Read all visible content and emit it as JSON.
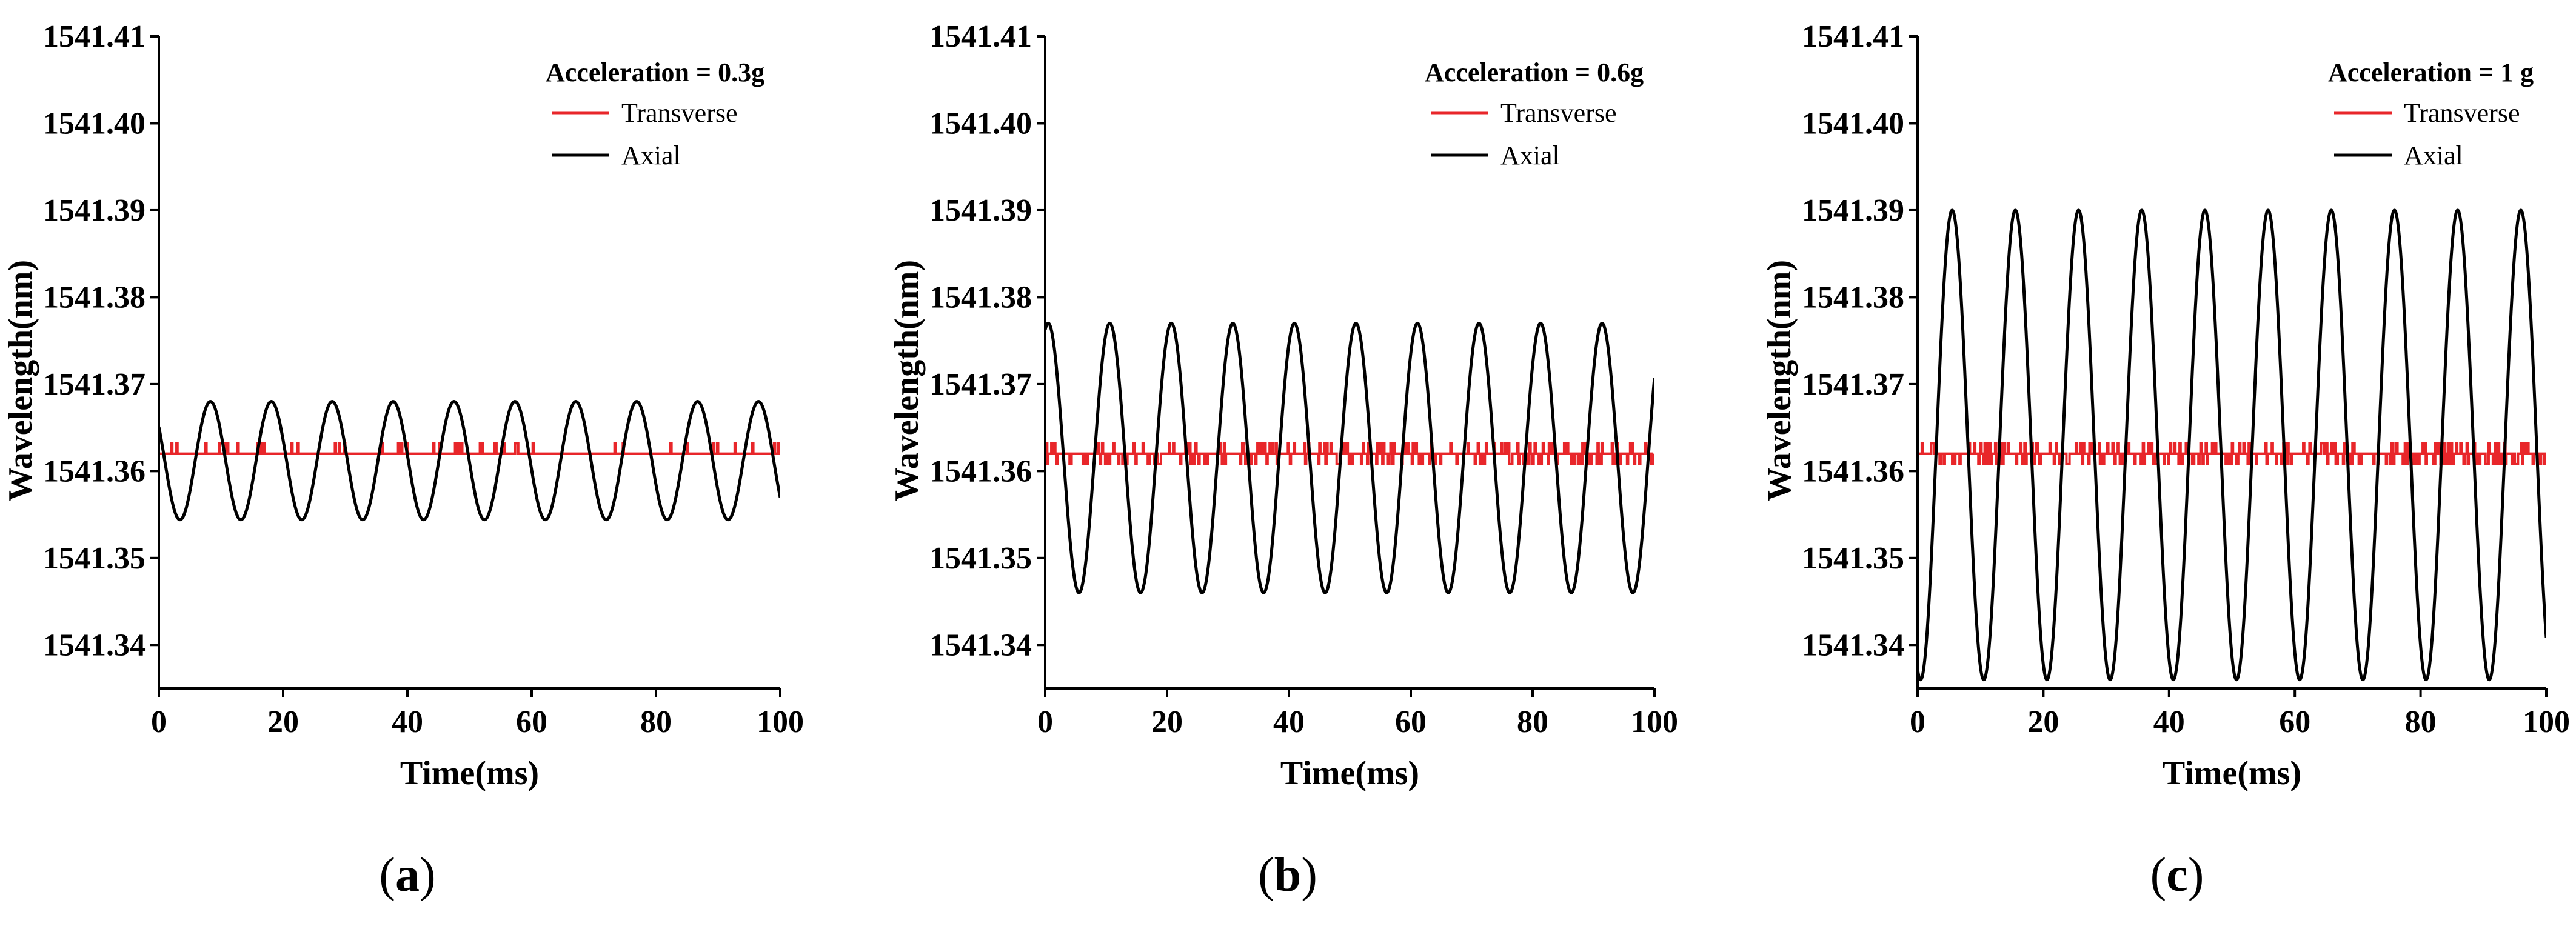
{
  "chart_data": [
    {
      "type": "line",
      "panel_label": "a",
      "legend_title": "Acceleration = 0.3g",
      "xlabel": "Time(ms)",
      "ylabel": "Wavelength(nm)",
      "xlim": [
        0,
        100
      ],
      "ylim": [
        1541.335,
        1541.41
      ],
      "xticks": [
        0,
        20,
        40,
        60,
        80,
        100
      ],
      "xtick_labels": [
        "0",
        "20",
        "40",
        "60",
        "80",
        "100"
      ],
      "yticks": [
        1541.34,
        1541.35,
        1541.36,
        1541.37,
        1541.38,
        1541.39,
        1541.4,
        1541.41
      ],
      "ytick_labels": [
        "1541.34",
        "1541.35",
        "1541.36",
        "1541.37",
        "1541.38",
        "1541.39",
        "1541.40",
        "1541.41"
      ],
      "series": [
        {
          "name": "Transverse",
          "color": "#e8262a",
          "kind": "noise",
          "baseline": 1541.362,
          "spike": 0.0012
        },
        {
          "name": "Axial",
          "color": "#000000",
          "kind": "sine",
          "center": 1541.3612,
          "amplitude": 0.0068,
          "period_ms": 9.8,
          "peak_time_ms": 8.3
        }
      ]
    },
    {
      "type": "line",
      "panel_label": "b",
      "legend_title": "Acceleration = 0.6g",
      "xlabel": "Time(ms)",
      "ylabel": "Wavelength(nm)",
      "xlim": [
        0,
        100
      ],
      "ylim": [
        1541.335,
        1541.41
      ],
      "xticks": [
        0,
        20,
        40,
        60,
        80,
        100
      ],
      "xtick_labels": [
        "0",
        "20",
        "40",
        "60",
        "80",
        "100"
      ],
      "yticks": [
        1541.34,
        1541.35,
        1541.36,
        1541.37,
        1541.38,
        1541.39,
        1541.4,
        1541.41
      ],
      "ytick_labels": [
        "1541.34",
        "1541.35",
        "1541.36",
        "1541.37",
        "1541.38",
        "1541.39",
        "1541.40",
        "1541.41"
      ],
      "series": [
        {
          "name": "Transverse",
          "color": "#e8262a",
          "kind": "noise",
          "baseline": 1541.362,
          "spike": 0.0012
        },
        {
          "name": "Axial",
          "color": "#000000",
          "kind": "sine",
          "center": 1541.3615,
          "amplitude": 0.0155,
          "period_ms": 10.1,
          "peak_time_ms": 0.5
        }
      ]
    },
    {
      "type": "line",
      "panel_label": "c",
      "legend_title": "Acceleration = 1 g",
      "xlabel": "Time(ms)",
      "ylabel": "Wavelength(nm)",
      "xlim": [
        0,
        100
      ],
      "ylim": [
        1541.335,
        1541.41
      ],
      "xticks": [
        0,
        20,
        40,
        60,
        80,
        100
      ],
      "xtick_labels": [
        "0",
        "20",
        "40",
        "60",
        "80",
        "100"
      ],
      "yticks": [
        1541.34,
        1541.35,
        1541.36,
        1541.37,
        1541.38,
        1541.39,
        1541.4,
        1541.41
      ],
      "ytick_labels": [
        "1541.34",
        "1541.35",
        "1541.36",
        "1541.37",
        "1541.38",
        "1541.39",
        "1541.40",
        "1541.41"
      ],
      "series": [
        {
          "name": "Transverse",
          "color": "#e8262a",
          "kind": "noise",
          "baseline": 1541.362,
          "spike": 0.0012
        },
        {
          "name": "Axial",
          "color": "#000000",
          "kind": "sine",
          "center": 1541.363,
          "amplitude": 0.027,
          "period_ms": 10.05,
          "peak_time_ms": 5.5
        }
      ]
    }
  ]
}
